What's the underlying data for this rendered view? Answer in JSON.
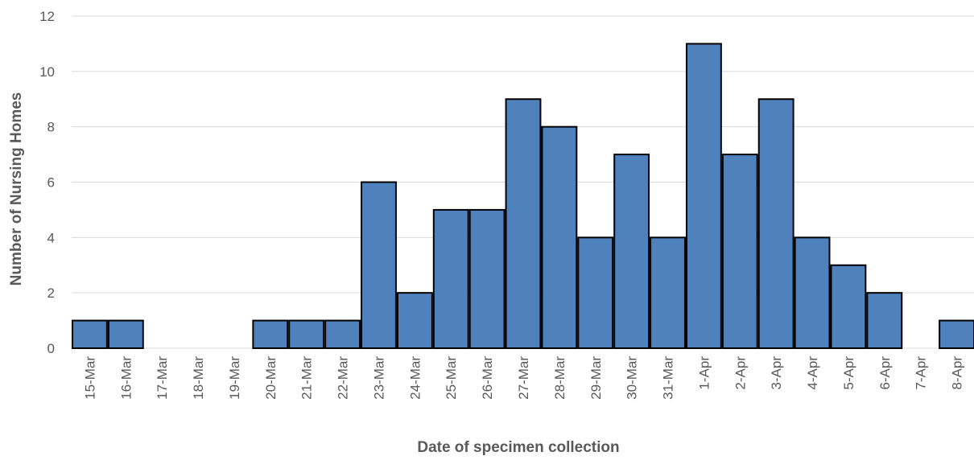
{
  "chart_data": {
    "type": "bar",
    "title": "",
    "xlabel": "Date of specimen collection",
    "ylabel": "Number of Nursing Homes",
    "categories": [
      "15-Mar",
      "16-Mar",
      "17-Mar",
      "18-Mar",
      "19-Mar",
      "20-Mar",
      "21-Mar",
      "22-Mar",
      "23-Mar",
      "24-Mar",
      "25-Mar",
      "26-Mar",
      "27-Mar",
      "28-Mar",
      "29-Mar",
      "30-Mar",
      "31-Mar",
      "1-Apr",
      "2-Apr",
      "3-Apr",
      "4-Apr",
      "5-Apr",
      "6-Apr",
      "7-Apr",
      "8-Apr"
    ],
    "values": [
      1,
      1,
      0,
      0,
      0,
      1,
      1,
      1,
      6,
      2,
      5,
      5,
      9,
      8,
      4,
      7,
      4,
      11,
      7,
      9,
      4,
      3,
      2,
      0,
      1
    ],
    "ylim": [
      0,
      12
    ],
    "yticks": [
      0,
      2,
      4,
      6,
      8,
      10,
      12
    ],
    "grid": true,
    "bar_color": "#4f81bd",
    "bar_edge_color": "#000000"
  }
}
